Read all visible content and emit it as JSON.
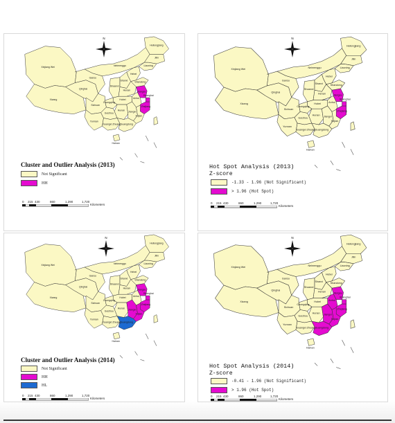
{
  "colors": {
    "not_significant": "#fbf8c4",
    "hh": "#e40bd0",
    "hl": "#1d6ad1",
    "hot_spot": "#e40bd0",
    "border": "#333333"
  },
  "panels": [
    {
      "title": "Cluster and Outlier Analysis (2013)",
      "subtitle": "",
      "legend": [
        {
          "label": "Not Significant",
          "color": "#fbf8c4"
        },
        {
          "label": "HH",
          "color": "#e40bd0"
        }
      ],
      "highlight": {
        "hh": [
          "Jiangsu",
          "Shanghai",
          "Zhejiang"
        ],
        "hl": []
      }
    },
    {
      "title": "Hot Spot Analysis (2013)",
      "subtitle": "Z-score",
      "legend": [
        {
          "label": "-1.33 - 1.96 (Not Significant)",
          "color": "#fbf8c4"
        },
        {
          "label": "> 1.96 (Hot Spot)",
          "color": "#e40bd0"
        }
      ],
      "highlight": {
        "hh": [
          "Jiangsu",
          "Shanghai",
          "Zhejiang"
        ],
        "hl": []
      }
    },
    {
      "title": "Cluster and Outlier Analysis (2014)",
      "subtitle": "",
      "legend": [
        {
          "label": "Not Significant",
          "color": "#fbf8c4"
        },
        {
          "label": "HH",
          "color": "#e40bd0"
        },
        {
          "label": "HL",
          "color": "#1d6ad1"
        }
      ],
      "highlight": {
        "hh": [
          "Jiangsu",
          "Shanghai",
          "Zhejiang",
          "Fujian",
          "Jiangxi"
        ],
        "hl": [
          "Guangdong"
        ]
      }
    },
    {
      "title": "Hot Spot Analysis (2014)",
      "subtitle": "Z-score",
      "legend": [
        {
          "label": "-0.41 - 1.96 (Not Significant)",
          "color": "#fbf8c4"
        },
        {
          "label": "> 1.96 (Hot Spot)",
          "color": "#e40bd0"
        }
      ],
      "highlight": {
        "hh": [
          "Jiangsu",
          "Shanghai",
          "Zhejiang",
          "Fujian",
          "Jiangxi",
          "Guangdong",
          "Anhui"
        ],
        "hl": []
      }
    }
  ],
  "scale": {
    "ticks": [
      "0",
      "215",
      "430",
      "860",
      "1,290",
      "1,720"
    ],
    "units": "Kilometers"
  },
  "north_label": "N",
  "provinces": [
    {
      "name": "Xinjiang Wei"
    },
    {
      "name": "Xizang"
    },
    {
      "name": "Qinghai"
    },
    {
      "name": "Gansu"
    },
    {
      "name": "Neimenggu"
    },
    {
      "name": "Heilongjiang"
    },
    {
      "name": "Jilin"
    },
    {
      "name": "Liaoning"
    },
    {
      "name": "Sichuan"
    },
    {
      "name": "Yunnan"
    },
    {
      "name": "Guizhou"
    },
    {
      "name": "Guangxi Zhuang"
    },
    {
      "name": "Guangdong"
    },
    {
      "name": "Hunan"
    },
    {
      "name": "Hubei"
    },
    {
      "name": "Henan"
    },
    {
      "name": "Shaanxi"
    },
    {
      "name": "Shanxi"
    },
    {
      "name": "Anhui"
    },
    {
      "name": "Jiangxi"
    },
    {
      "name": "Fujian"
    },
    {
      "name": "Zhejiang"
    },
    {
      "name": "Jiangsu"
    },
    {
      "name": "Shanghai"
    },
    {
      "name": "Shandong"
    },
    {
      "name": "Hebei"
    },
    {
      "name": "Hainan"
    },
    {
      "name": "Chongqing"
    }
  ]
}
